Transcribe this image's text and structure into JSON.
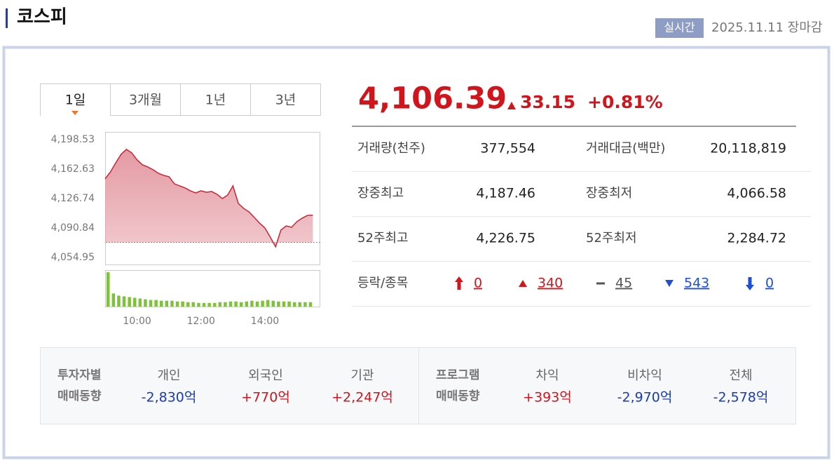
{
  "header": {
    "title": "코스피",
    "badge": "실시간",
    "status": "2025.11.11 장마감"
  },
  "tabs": [
    "1일",
    "3개월",
    "1년",
    "3년"
  ],
  "active_tab": 0,
  "quote": {
    "price": "4,106.39",
    "change": "33.15",
    "change_rate": "+0.81%"
  },
  "stats": [
    [
      "거래량(천주)",
      "377,554",
      "거래대금(백만)",
      "20,118,819"
    ],
    [
      "장중최고",
      "4,187.46",
      "장중최저",
      "4,066.58"
    ],
    [
      "52주최고",
      "4,226.75",
      "52주최저",
      "2,284.72"
    ]
  ],
  "breadth": {
    "label": "등락/종목",
    "items": [
      "0",
      "340",
      "45",
      "543",
      "0"
    ]
  },
  "investors": [
    {
      "label": [
        "투자자별",
        "매매동향"
      ],
      "items": [
        {
          "name": "개인",
          "value": "-2,830억"
        },
        {
          "name": "외국인",
          "value": "+770억"
        },
        {
          "name": "기관",
          "value": "+2,247억"
        }
      ]
    },
    {
      "label": [
        "프로그램",
        "매매동향"
      ],
      "items": [
        {
          "name": "차익",
          "value": "+393억"
        },
        {
          "name": "비차익",
          "value": "-2,970억"
        },
        {
          "name": "전체",
          "value": "-2,578억"
        }
      ]
    }
  ],
  "chart_data": [
    {
      "type": "line",
      "x": [
        540,
        550,
        560,
        570,
        580,
        590,
        600,
        610,
        620,
        630,
        640,
        650,
        660,
        670,
        680,
        690,
        700,
        710,
        720,
        730,
        740,
        750,
        760,
        770,
        780,
        790,
        800,
        810,
        820,
        830,
        840,
        850,
        860,
        870,
        880,
        890,
        900,
        910,
        920,
        930
      ],
      "series": [
        {
          "color": "#c4303e",
          "values": [
            4150.7,
            4159.2,
            4170.3,
            4180.6,
            4186.6,
            4182.3,
            4173.8,
            4167.8,
            4165.2,
            4161.8,
            4157.5,
            4154.9,
            4153.2,
            4144.7,
            4142.1,
            4139.6,
            4136.1,
            4133.6,
            4136.1,
            4134.4,
            4135.3,
            4131.9,
            4126.7,
            4131.0,
            4142.1,
            4120.8,
            4114.8,
            4110.5,
            4103.7,
            4096.8,
            4090.8,
            4079.7,
            4068.0,
            4088.3,
            4093.4,
            4091.7,
            4098.5,
            4102.8,
            4106.2,
            4106.4
          ]
        }
      ],
      "fill_color": "#e49aa3",
      "baseline": 4073.24,
      "xlim": [
        540,
        944
      ],
      "ylim": [
        4046.4,
        4207.9
      ],
      "xticks": [
        {
          "value": 600,
          "label": "10:00"
        },
        {
          "value": 720,
          "label": "12:00"
        },
        {
          "value": 840,
          "label": "14:00"
        }
      ],
      "yticks": [
        {
          "value": 4054.95,
          "label": "4,054.95"
        },
        {
          "value": 4090.84,
          "label": "4,090.84"
        },
        {
          "value": 4126.74,
          "label": "4,126.74"
        },
        {
          "value": 4162.63,
          "label": "4,162.63"
        },
        {
          "value": 4198.53,
          "label": "4,198.53"
        }
      ]
    },
    {
      "type": "bar",
      "x": [
        540,
        550,
        560,
        570,
        580,
        590,
        600,
        610,
        620,
        630,
        640,
        650,
        660,
        670,
        680,
        690,
        700,
        710,
        720,
        730,
        740,
        750,
        760,
        770,
        780,
        790,
        800,
        810,
        820,
        830,
        840,
        850,
        860,
        870,
        880,
        890,
        900,
        910,
        920
      ],
      "values": [
        47,
        18,
        15,
        14,
        13,
        12,
        11,
        10,
        9,
        9,
        8,
        8,
        8,
        7,
        7,
        6,
        6,
        5,
        5,
        5,
        5,
        6,
        6,
        7,
        7,
        6,
        7,
        8,
        7,
        8,
        9,
        8,
        7,
        7,
        7,
        6,
        6,
        6,
        6
      ],
      "color": "#7ec23c",
      "xlim": [
        540,
        944
      ],
      "ylim": [
        0,
        50
      ]
    }
  ]
}
